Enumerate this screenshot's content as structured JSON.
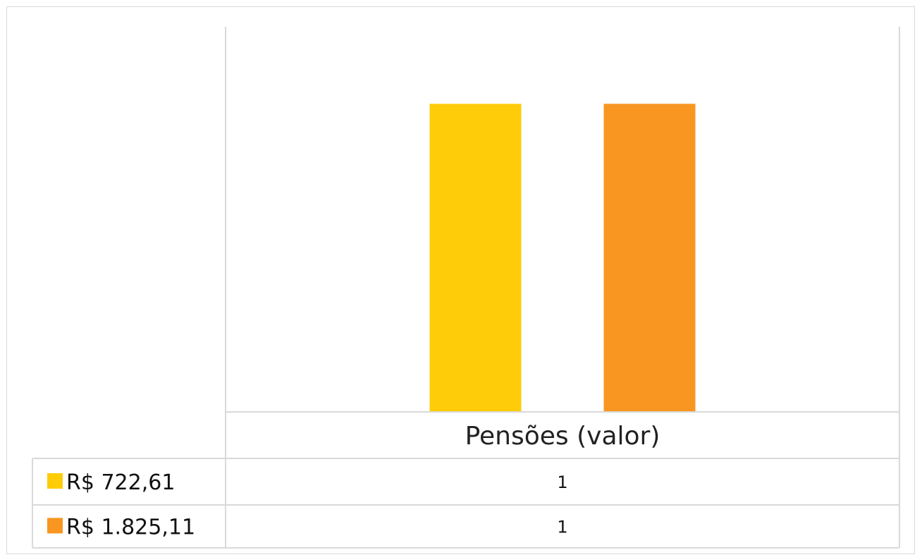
{
  "chart_data": {
    "type": "bar",
    "categories": [
      "Pensões (valor)"
    ],
    "series": [
      {
        "name": "R$ 722,61",
        "values": [
          1
        ],
        "color": "#FFCC0A"
      },
      {
        "name": "R$ 1.825,11",
        "values": [
          1
        ],
        "color": "#F89621"
      }
    ],
    "ylim": [
      0,
      1.25
    ],
    "grid": false,
    "legend": "data-table-left"
  }
}
